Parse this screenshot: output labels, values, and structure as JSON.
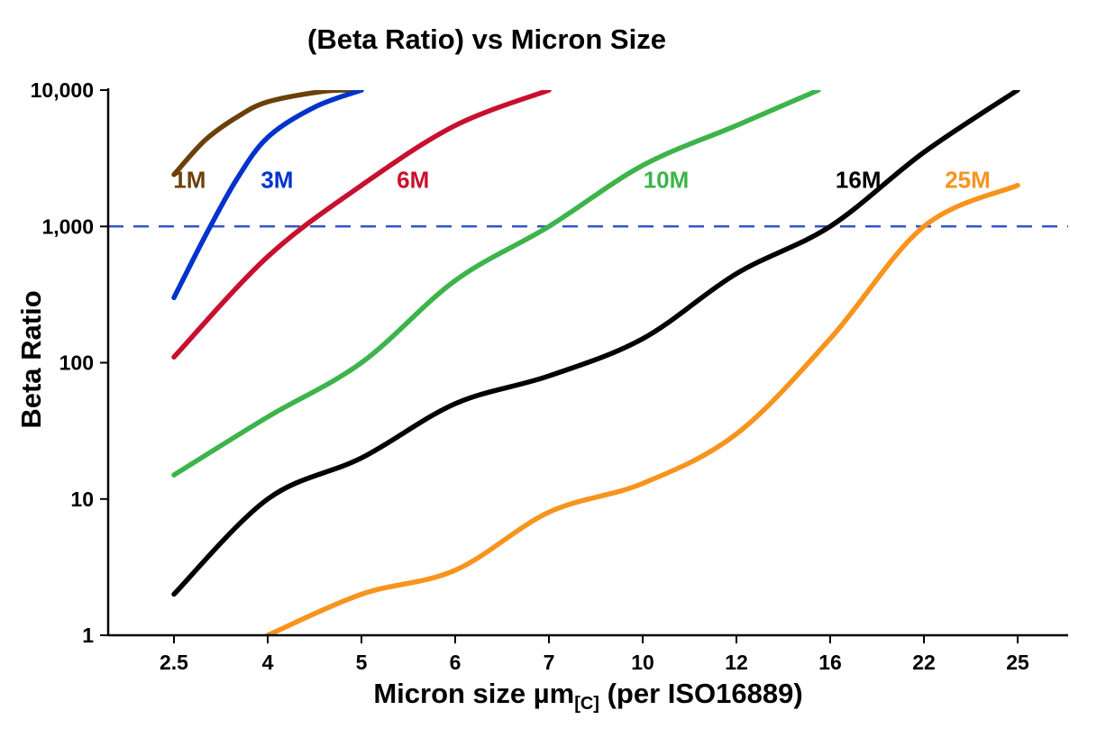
{
  "title": "(Beta Ratio) vs Micron Size",
  "ylabel": "Beta Ratio",
  "xlabel": {
    "pre": "Micron size µm",
    "sub": "[C]",
    "post": " (per ISO16889)"
  },
  "chart_data": {
    "type": "line",
    "title": "(Beta Ratio) vs Micron Size",
    "xlabel": "Micron size µm[C] (per ISO16889)",
    "ylabel": "Beta Ratio",
    "x_scale": "category",
    "y_scale": "log",
    "ylim": [
      1,
      10000
    ],
    "grid": false,
    "axis_color": "#000000",
    "categories": [
      2.5,
      4,
      5,
      6,
      7,
      10,
      12,
      16,
      22,
      25
    ],
    "x_tick_labels": [
      "2.5",
      "4",
      "5",
      "6",
      "7",
      "10",
      "12",
      "16",
      "22",
      "25"
    ],
    "y_ticks": [
      {
        "value": 1,
        "label": "1"
      },
      {
        "value": 10,
        "label": "10"
      },
      {
        "value": 100,
        "label": "100"
      },
      {
        "value": 1000,
        "label": "1,000"
      },
      {
        "value": 10000,
        "label": "10,000"
      }
    ],
    "reference_line": {
      "value": 1000,
      "color": "#3355CC",
      "style": "dashed"
    },
    "series": [
      {
        "name": "1M",
        "color": "#6B4008",
        "label_pos": [
          2.75,
          2200
        ],
        "points": [
          [
            2.5,
            2400
          ],
          [
            3,
            4300
          ],
          [
            3.5,
            6300
          ],
          [
            4,
            8200
          ],
          [
            4.6,
            9800
          ],
          [
            5,
            10000
          ]
        ]
      },
      {
        "name": "3M",
        "color": "#0033CC",
        "label_pos": [
          4.1,
          2200
        ],
        "points": [
          [
            2.5,
            300
          ],
          [
            3,
            850
          ],
          [
            3.5,
            2200
          ],
          [
            4,
            4500
          ],
          [
            4.5,
            7500
          ],
          [
            5,
            10000
          ]
        ]
      },
      {
        "name": "6M",
        "color": "#C8102E",
        "label_pos": [
          5.55,
          2200
        ],
        "points": [
          [
            2.5,
            110
          ],
          [
            4,
            600
          ],
          [
            5,
            2000
          ],
          [
            6,
            5500
          ],
          [
            7,
            10000
          ]
        ]
      },
      {
        "name": "10M",
        "color": "#3CB44A",
        "label_pos": [
          10.5,
          2200
        ],
        "points": [
          [
            2.5,
            15
          ],
          [
            4,
            40
          ],
          [
            5,
            100
          ],
          [
            6,
            400
          ],
          [
            7,
            1000
          ],
          [
            10,
            2800
          ],
          [
            12,
            5500
          ],
          [
            15.5,
            10000
          ]
        ]
      },
      {
        "name": "16M",
        "color": "#000000",
        "label_pos": [
          17.8,
          2200
        ],
        "points": [
          [
            2.5,
            2
          ],
          [
            4,
            10
          ],
          [
            5,
            20
          ],
          [
            6,
            50
          ],
          [
            7,
            80
          ],
          [
            10,
            150
          ],
          [
            12,
            450
          ],
          [
            16,
            1000
          ],
          [
            22,
            3500
          ],
          [
            25,
            10000
          ]
        ]
      },
      {
        "name": "25M",
        "color": "#F7941D",
        "label_pos": [
          23.4,
          2200
        ],
        "points": [
          [
            4,
            1
          ],
          [
            5,
            2
          ],
          [
            6,
            3
          ],
          [
            7,
            8
          ],
          [
            10,
            13
          ],
          [
            12,
            30
          ],
          [
            16,
            150
          ],
          [
            22,
            1000
          ],
          [
            25,
            2000
          ]
        ]
      }
    ]
  }
}
